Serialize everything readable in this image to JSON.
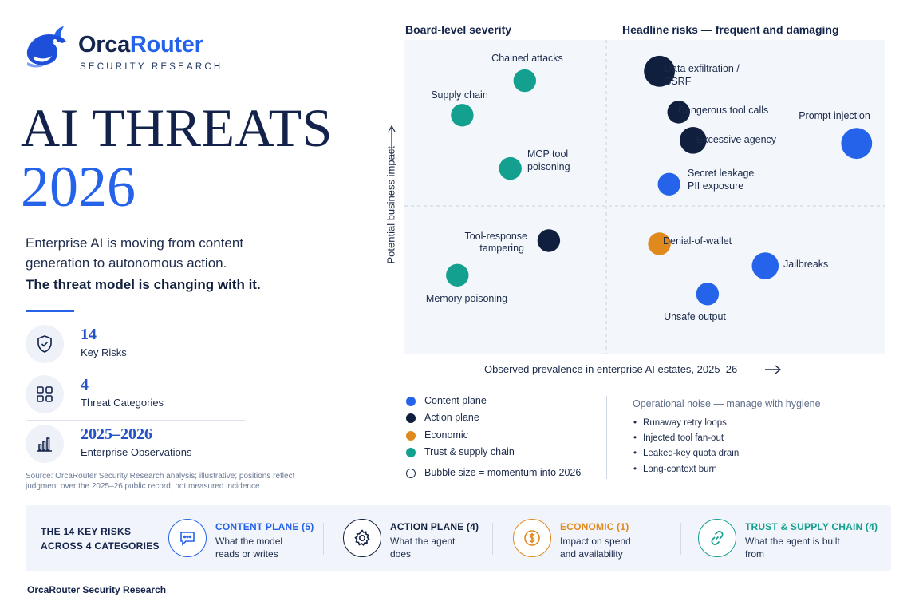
{
  "brand": {
    "name_a": "Orca",
    "name_b": "Router",
    "tagline": "SECURITY RESEARCH"
  },
  "hero": {
    "line1": "AI THREATS",
    "line2": "2026"
  },
  "intro": {
    "text": "Enterprise AI is moving from content generation to autonomous action.",
    "strong": "The threat model is changing with it."
  },
  "stats": [
    {
      "value": "14",
      "label": "Key Risks",
      "icon": "shield-check-icon"
    },
    {
      "value": "4",
      "label": "Threat Categories",
      "icon": "grid-icon"
    },
    {
      "value": "2025–2026",
      "label": "Enterprise Observations",
      "icon": "bar-chart-icon"
    }
  ],
  "source": "Source: OrcaRouter Security Research analysis; illustrative; positions reflect judgment over the 2025–26 public record, not measured incidence",
  "chart_data": {
    "type": "scatter",
    "quadrant_titles": {
      "top_left": "Board-level severity",
      "top_right": "Headline risks — frequent and damaging"
    },
    "xlabel": "Observed prevalence in enterprise AI estates, 2025–26",
    "ylabel": "Potential business impact",
    "xlim": [
      0,
      100
    ],
    "ylim": [
      0,
      100
    ],
    "grid": false,
    "quadrant_dividers": {
      "x": 50,
      "y": 50
    },
    "legend_position": "bottom-left",
    "size_legend": "Bubble size = momentum into 2026",
    "series": [
      {
        "name": "Content plane",
        "color": "#2563eb"
      },
      {
        "name": "Action plane",
        "color": "#0f1f3d"
      },
      {
        "name": "Economic",
        "color": "#e08a1e"
      },
      {
        "name": "Trust & supply chain",
        "color": "#14a08f"
      }
    ],
    "points": [
      {
        "label": "Chained attacks",
        "series": "Trust & supply chain",
        "x": 25,
        "y": 87,
        "size": 2
      },
      {
        "label": "Supply chain",
        "series": "Trust & supply chain",
        "x": 12,
        "y": 76,
        "size": 2
      },
      {
        "label": "MCP tool poisoning",
        "series": "Trust & supply chain",
        "x": 22,
        "y": 59,
        "size": 2
      },
      {
        "label": "Tool-response tampering",
        "series": "Action plane",
        "x": 30,
        "y": 36,
        "size": 2
      },
      {
        "label": "Memory poisoning",
        "series": "Trust & supply chain",
        "x": 11,
        "y": 25,
        "size": 2
      },
      {
        "label": "Data exfiltration / SSRF",
        "series": "Action plane",
        "x": 53,
        "y": 90,
        "size": 4
      },
      {
        "label": "Dangerous tool calls",
        "series": "Action plane",
        "x": 57,
        "y": 77,
        "size": 2
      },
      {
        "label": "Excessive agency",
        "series": "Action plane",
        "x": 60,
        "y": 68,
        "size": 3
      },
      {
        "label": "Prompt injection",
        "series": "Content plane",
        "x": 94,
        "y": 67,
        "size": 4
      },
      {
        "label": "Secret leakage PII exposure",
        "series": "Content plane",
        "x": 55,
        "y": 54,
        "size": 2
      },
      {
        "label": "Denial-of-wallet",
        "series": "Economic",
        "x": 53,
        "y": 35,
        "size": 2
      },
      {
        "label": "Jailbreaks",
        "series": "Content plane",
        "x": 75,
        "y": 28,
        "size": 3
      },
      {
        "label": "Unsafe output",
        "series": "Content plane",
        "x": 63,
        "y": 19,
        "size": 2
      }
    ]
  },
  "point_labels": {
    "chained": [
      "Chained attacks"
    ],
    "supply": [
      "Supply chain"
    ],
    "mcp": [
      "MCP tool",
      "poisoning"
    ],
    "tool_resp": [
      "Tool-response",
      "tampering"
    ],
    "memory": [
      "Memory poisoning"
    ],
    "exfil": [
      "Data exfiltration /",
      "SSRF"
    ],
    "dangerous": [
      "Dangerous tool calls"
    ],
    "agency": [
      "Excessive agency"
    ],
    "prompt": [
      "Prompt injection"
    ],
    "secret": [
      "Secret leakage",
      "PII exposure"
    ],
    "wallet": [
      "Denial-of-wallet"
    ],
    "jailbreak": [
      "Jailbreaks"
    ],
    "unsafe": [
      "Unsafe output"
    ]
  },
  "noise": {
    "title": "Operational noise — manage with hygiene",
    "items": [
      "Runaway retry loops",
      "Injected tool fan-out",
      "Leaked-key quota drain",
      "Long-context burn"
    ]
  },
  "categories": {
    "heading_line1": "THE 14 KEY RISKS",
    "heading_line2": "ACROSS 4 CATEGORIES",
    "items": [
      {
        "title": "CONTENT PLANE (5)",
        "desc_line1": "What the model",
        "desc_line2": "reads or writes",
        "color": "#2563eb",
        "icon": "chat-bubble-icon"
      },
      {
        "title": "ACTION PLANE (4)",
        "desc_line1": "What the agent",
        "desc_line2": "does",
        "color": "#0f1f3d",
        "icon": "gear-icon"
      },
      {
        "title": "ECONOMIC (1)",
        "desc_line1": "Impact on spend",
        "desc_line2": "and availability",
        "color": "#e08a1e",
        "icon": "dollar-icon"
      },
      {
        "title": "TRUST & SUPPLY CHAIN (4)",
        "desc_line1": "What the agent is built",
        "desc_line2": "from",
        "color": "#14a08f",
        "icon": "link-icon"
      }
    ]
  },
  "footer": "OrcaRouter Security Research"
}
